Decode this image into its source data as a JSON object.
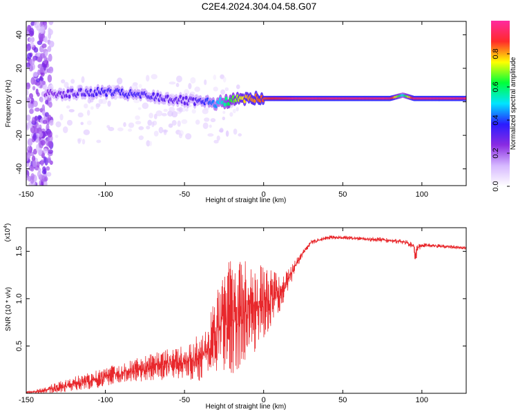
{
  "title": "C2E4.2024.304.04.58.G07",
  "colors": {
    "snr_line": "#e8282c",
    "axes": "#000000",
    "background": "#ffffff"
  },
  "chart_data": [
    {
      "type": "heatmap",
      "xlabel": "Height of straight line (km)",
      "ylabel": "Frequency (Hz)",
      "xlim": [
        -150,
        128
      ],
      "ylim": [
        -50,
        48
      ],
      "x_ticks": [
        -150,
        -100,
        -50,
        0,
        50,
        100
      ],
      "y_ticks": [
        -40,
        -20,
        0,
        20,
        40
      ],
      "colorbar": {
        "label": "Normalized spectral amplitude",
        "range": [
          0,
          1
        ],
        "ticks": [
          "0.0",
          "0.2",
          "0.4",
          "0.6",
          "0.8"
        ],
        "colormap": [
          "#ffffff",
          "#d6b8ff",
          "#8a2be2",
          "#2a1cff",
          "#00e5ff",
          "#00ff3a",
          "#ffff00",
          "#ff2a2a",
          "#ff2aa0"
        ]
      },
      "ridge": {
        "x": [
          -137,
          -120,
          -100,
          -80,
          -60,
          -45,
          -30,
          -20,
          -10,
          0,
          20,
          40,
          60,
          80,
          88,
          95,
          100,
          128
        ],
        "freq": [
          5,
          5,
          6,
          4,
          2,
          0,
          -1,
          1,
          2,
          2,
          2,
          2,
          2,
          2,
          4,
          2,
          2,
          2
        ],
        "amplitude": [
          0.25,
          0.3,
          0.35,
          0.35,
          0.3,
          0.3,
          0.45,
          0.65,
          0.8,
          0.85,
          0.95,
          0.95,
          0.95,
          0.95,
          0.5,
          0.95,
          0.95,
          0.95
        ]
      }
    },
    {
      "type": "line",
      "xlabel": "Height of straight line (km)",
      "ylabel": "SNR (10 * v/v)",
      "y_multiplier": "(x10",
      "y_exponent": "4",
      "xlim": [
        -150,
        128
      ],
      "ylim": [
        0,
        17500
      ],
      "x_ticks": [
        -150,
        -100,
        -50,
        0,
        50,
        100
      ],
      "y_ticks": [
        5000,
        10000,
        15000
      ],
      "y_tick_labels": [
        "0.5",
        "1.0",
        "1.5"
      ],
      "series": [
        {
          "x": [
            -150,
            -140,
            -130,
            -120,
            -110,
            -100,
            -90,
            -80,
            -70,
            -60,
            -50,
            -40,
            -35,
            -30,
            -25,
            -20,
            -15,
            -10,
            -5,
            0,
            5,
            10,
            15,
            20,
            25,
            30,
            40,
            50,
            60,
            70,
            80,
            90,
            95,
            96,
            97,
            100,
            110,
            120,
            128
          ],
          "values": [
            100,
            300,
            700,
            1100,
            1500,
            1900,
            2300,
            2700,
            3000,
            3400,
            3700,
            4300,
            5500,
            7000,
            8500,
            9500,
            9500,
            9800,
            10000,
            10200,
            10600,
            11000,
            12000,
            13500,
            15000,
            16000,
            16500,
            16500,
            16400,
            16300,
            16200,
            16000,
            15600,
            14200,
            15400,
            15700,
            15600,
            15500,
            15400
          ],
          "spread": [
            150,
            400,
            700,
            900,
            1100,
            1200,
            1300,
            1500,
            1700,
            1900,
            2200,
            3000,
            3800,
            5000,
            6500,
            7500,
            7000,
            6500,
            5500,
            4500,
            3500,
            2500,
            1500,
            800,
            400,
            300,
            250,
            250,
            250,
            300,
            300,
            300,
            400,
            1200,
            500,
            300,
            250,
            250,
            250
          ]
        }
      ]
    }
  ]
}
